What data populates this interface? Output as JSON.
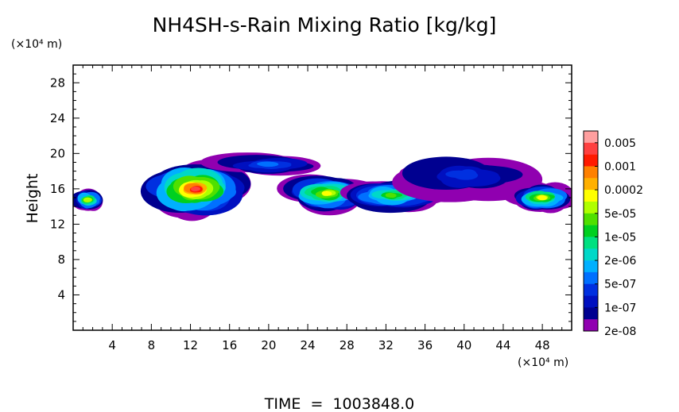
{
  "chart_data": {
    "type": "heatmap",
    "title": "NH4SH-s-Rain Mixing Ratio [kg/kg]",
    "ylabel": "Height",
    "y_unit": "(×10⁴ m)",
    "x_unit": "(×10⁴ m)",
    "xlim": [
      0,
      51
    ],
    "ylim": [
      0,
      30
    ],
    "x_ticks": [
      4,
      8,
      12,
      16,
      20,
      24,
      28,
      32,
      36,
      40,
      44,
      48
    ],
    "y_ticks": [
      4,
      8,
      12,
      16,
      20,
      24,
      28
    ],
    "time_label": "TIME  =  1003848.0",
    "colorbar": {
      "labels": [
        "0.005",
        "0.001",
        "0.0002",
        "5e-05",
        "1e-05",
        "2e-06",
        "5e-07",
        "1e-07",
        "2e-08"
      ],
      "colors_top_to_bottom": [
        "#ff9f9f",
        "#ff4040",
        "#ff1a00",
        "#ff8000",
        "#ffb000",
        "#ffff00",
        "#b0ff00",
        "#50e000",
        "#00d020",
        "#00e080",
        "#00d8c8",
        "#00b0ff",
        "#0070ff",
        "#0030e0",
        "#0010c0",
        "#000090",
        "#9000b0"
      ]
    },
    "regions": [
      {
        "name": "left-edge-band",
        "level": 6,
        "x": [
          0,
          3
        ],
        "y": [
          13.5,
          16
        ]
      },
      {
        "name": "convective-core-12",
        "level": 1,
        "x": [
          8,
          17
        ],
        "y": [
          13,
          19
        ]
      },
      {
        "name": "high-anvil-18",
        "level": 12,
        "x": [
          15,
          25
        ],
        "y": [
          17.5,
          20
        ]
      },
      {
        "name": "core-24",
        "level": 5,
        "x": [
          22,
          30
        ],
        "y": [
          13.5,
          17.5
        ]
      },
      {
        "name": "mid-band-32",
        "level": 7,
        "x": [
          28,
          37
        ],
        "y": [
          13.5,
          17
        ]
      },
      {
        "name": "anvil-38",
        "level": 13,
        "x": [
          34,
          46
        ],
        "y": [
          15,
          20
        ]
      },
      {
        "name": "cell-48",
        "level": 5,
        "x": [
          45,
          51
        ],
        "y": [
          13.5,
          16.5
        ]
      }
    ]
  }
}
